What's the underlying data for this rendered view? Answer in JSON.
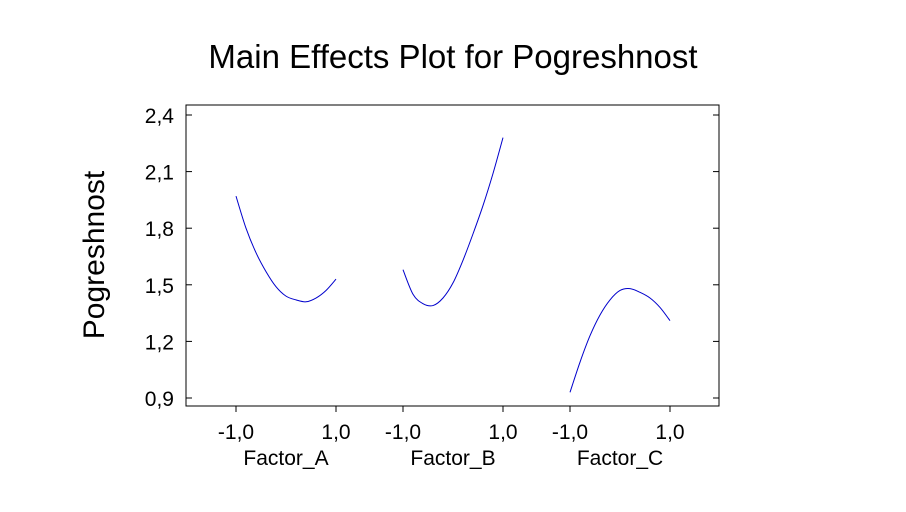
{
  "chart_data": {
    "type": "line",
    "title": "Main Effects Plot for Pogreshnost",
    "xlabel": "",
    "ylabel": "Pogreshnost",
    "ylim": [
      0.85,
      2.45
    ],
    "yticks": [
      0.9,
      1.2,
      1.5,
      1.8,
      2.1,
      2.4
    ],
    "ytick_labels": [
      "0,9",
      "1,2",
      "1,5",
      "1,8",
      "2,1",
      "2,4"
    ],
    "grid": false,
    "line_color": "#0000cc",
    "panels": [
      {
        "name": "Factor_A",
        "xtick_labels": [
          "-1,0",
          "1,0"
        ],
        "x": [
          -1.0,
          -0.8,
          -0.6,
          -0.4,
          -0.2,
          0.0,
          0.2,
          0.4,
          0.6,
          0.8,
          1.0
        ],
        "values": [
          1.97,
          1.8,
          1.67,
          1.57,
          1.49,
          1.44,
          1.42,
          1.41,
          1.43,
          1.47,
          1.53
        ]
      },
      {
        "name": "Factor_B",
        "xtick_labels": [
          "-1,0",
          "1,0"
        ],
        "x": [
          -1.0,
          -0.8,
          -0.6,
          -0.4,
          -0.2,
          0.0,
          0.2,
          0.4,
          0.6,
          0.8,
          1.0
        ],
        "values": [
          1.58,
          1.45,
          1.4,
          1.39,
          1.43,
          1.51,
          1.63,
          1.77,
          1.92,
          2.09,
          2.28
        ]
      },
      {
        "name": "Factor_C",
        "xtick_labels": [
          "-1,0",
          "1,0"
        ],
        "x": [
          -1.0,
          -0.8,
          -0.6,
          -0.4,
          -0.2,
          0.0,
          0.2,
          0.4,
          0.6,
          0.8,
          1.0
        ],
        "values": [
          0.93,
          1.09,
          1.23,
          1.34,
          1.42,
          1.47,
          1.48,
          1.46,
          1.43,
          1.38,
          1.31
        ]
      }
    ]
  }
}
